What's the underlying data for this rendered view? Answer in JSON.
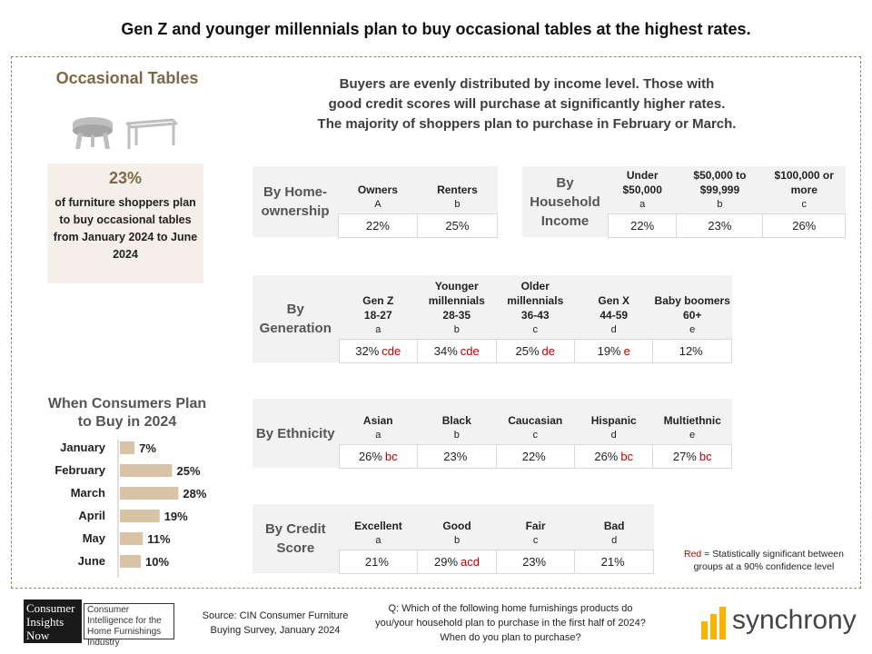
{
  "title": "Gen Z and younger millennials plan to buy occasional tables at the highest rates.",
  "category": "Occasional Tables",
  "headline": [
    "Buyers are evenly distributed by income level. Those with",
    "good credit scores will purchase at significantly higher rates.",
    "The majority of shoppers plan to purchase in February or March."
  ],
  "stat": {
    "pct": "23%",
    "text": "of furniture shoppers plan to buy occasional tables from January 2024 to June 2024"
  },
  "tables": {
    "homeownership": {
      "label": "By Home-ownership",
      "cols": [
        {
          "name": "Owners",
          "letter": "A",
          "value": "22%",
          "sig": ""
        },
        {
          "name": "Renters",
          "letter": "b",
          "value": "25%",
          "sig": ""
        }
      ]
    },
    "income": {
      "label": "By Household Income",
      "cols": [
        {
          "name": "Under $50,000",
          "letter": "a",
          "value": "22%",
          "sig": ""
        },
        {
          "name": "$50,000 to $99,999",
          "letter": "b",
          "value": "23%",
          "sig": ""
        },
        {
          "name": "$100,000 or more",
          "letter": "c",
          "value": "26%",
          "sig": ""
        }
      ]
    },
    "generation": {
      "label": "By Generation",
      "cols": [
        {
          "name": "Gen Z",
          "range": "18-27",
          "letter": "a",
          "value": "32%",
          "sig": "cde"
        },
        {
          "name": "Younger millennials",
          "range": "28-35",
          "letter": "b",
          "value": "34%",
          "sig": "cde"
        },
        {
          "name": "Older millennials",
          "range": "36-43",
          "letter": "c",
          "value": "25%",
          "sig": "de"
        },
        {
          "name": "Gen X",
          "range": "44-59",
          "letter": "d",
          "value": "19%",
          "sig": "e"
        },
        {
          "name": "Baby boomers",
          "range": "60+",
          "letter": "e",
          "value": "12%",
          "sig": ""
        }
      ]
    },
    "ethnicity": {
      "label": "By Ethnicity",
      "cols": [
        {
          "name": "Asian",
          "letter": "a",
          "value": "26%",
          "sig": "bc"
        },
        {
          "name": "Black",
          "letter": "b",
          "value": "23%",
          "sig": ""
        },
        {
          "name": "Caucasian",
          "letter": "c",
          "value": "22%",
          "sig": ""
        },
        {
          "name": "Hispanic",
          "letter": "d",
          "value": "26%",
          "sig": "bc"
        },
        {
          "name": "Multiethnic",
          "letter": "e",
          "value": "27%",
          "sig": "bc"
        }
      ]
    },
    "credit": {
      "label": "By Credit Score",
      "cols": [
        {
          "name": "Excellent",
          "letter": "a",
          "value": "21%",
          "sig": ""
        },
        {
          "name": "Good",
          "letter": "b",
          "value": "29%",
          "sig": "acd"
        },
        {
          "name": "Fair",
          "letter": "c",
          "value": "23%",
          "sig": ""
        },
        {
          "name": "Bad",
          "letter": "d",
          "value": "21%",
          "sig": ""
        }
      ]
    }
  },
  "chart_data": {
    "type": "bar",
    "orientation": "horizontal",
    "title": "When Consumers Plan to Buy in 2024",
    "categories": [
      "January",
      "February",
      "March",
      "April",
      "May",
      "June"
    ],
    "values": [
      7,
      25,
      28,
      19,
      11,
      10
    ],
    "value_labels": [
      "7%",
      "25%",
      "28%",
      "19%",
      "11%",
      "10%"
    ],
    "xlim": [
      0,
      30
    ],
    "bar_color": "#d9c3a5",
    "grid": false
  },
  "note": {
    "red": "Red",
    "text": " = Statistically significant between groups at a 90% confidence level"
  },
  "logo": {
    "line1": "Consumer",
    "line2": "Insights",
    "line3": "Now",
    "tagline": "Consumer Intelligence for the Home Furnishings Industry"
  },
  "source": "Source: CIN Consumer Furniture Buying Survey, January 2024",
  "question": "Q: Which of the following home furnishings products do you/your household plan to purchase in the first half of 2024? When do you plan to purchase?",
  "brand": "synchrony",
  "colors": {
    "accent_brown": "#7d6848",
    "significance_red": "#c00000",
    "brand_yellow": "#f7b500",
    "bar": "#d9c3a5"
  }
}
